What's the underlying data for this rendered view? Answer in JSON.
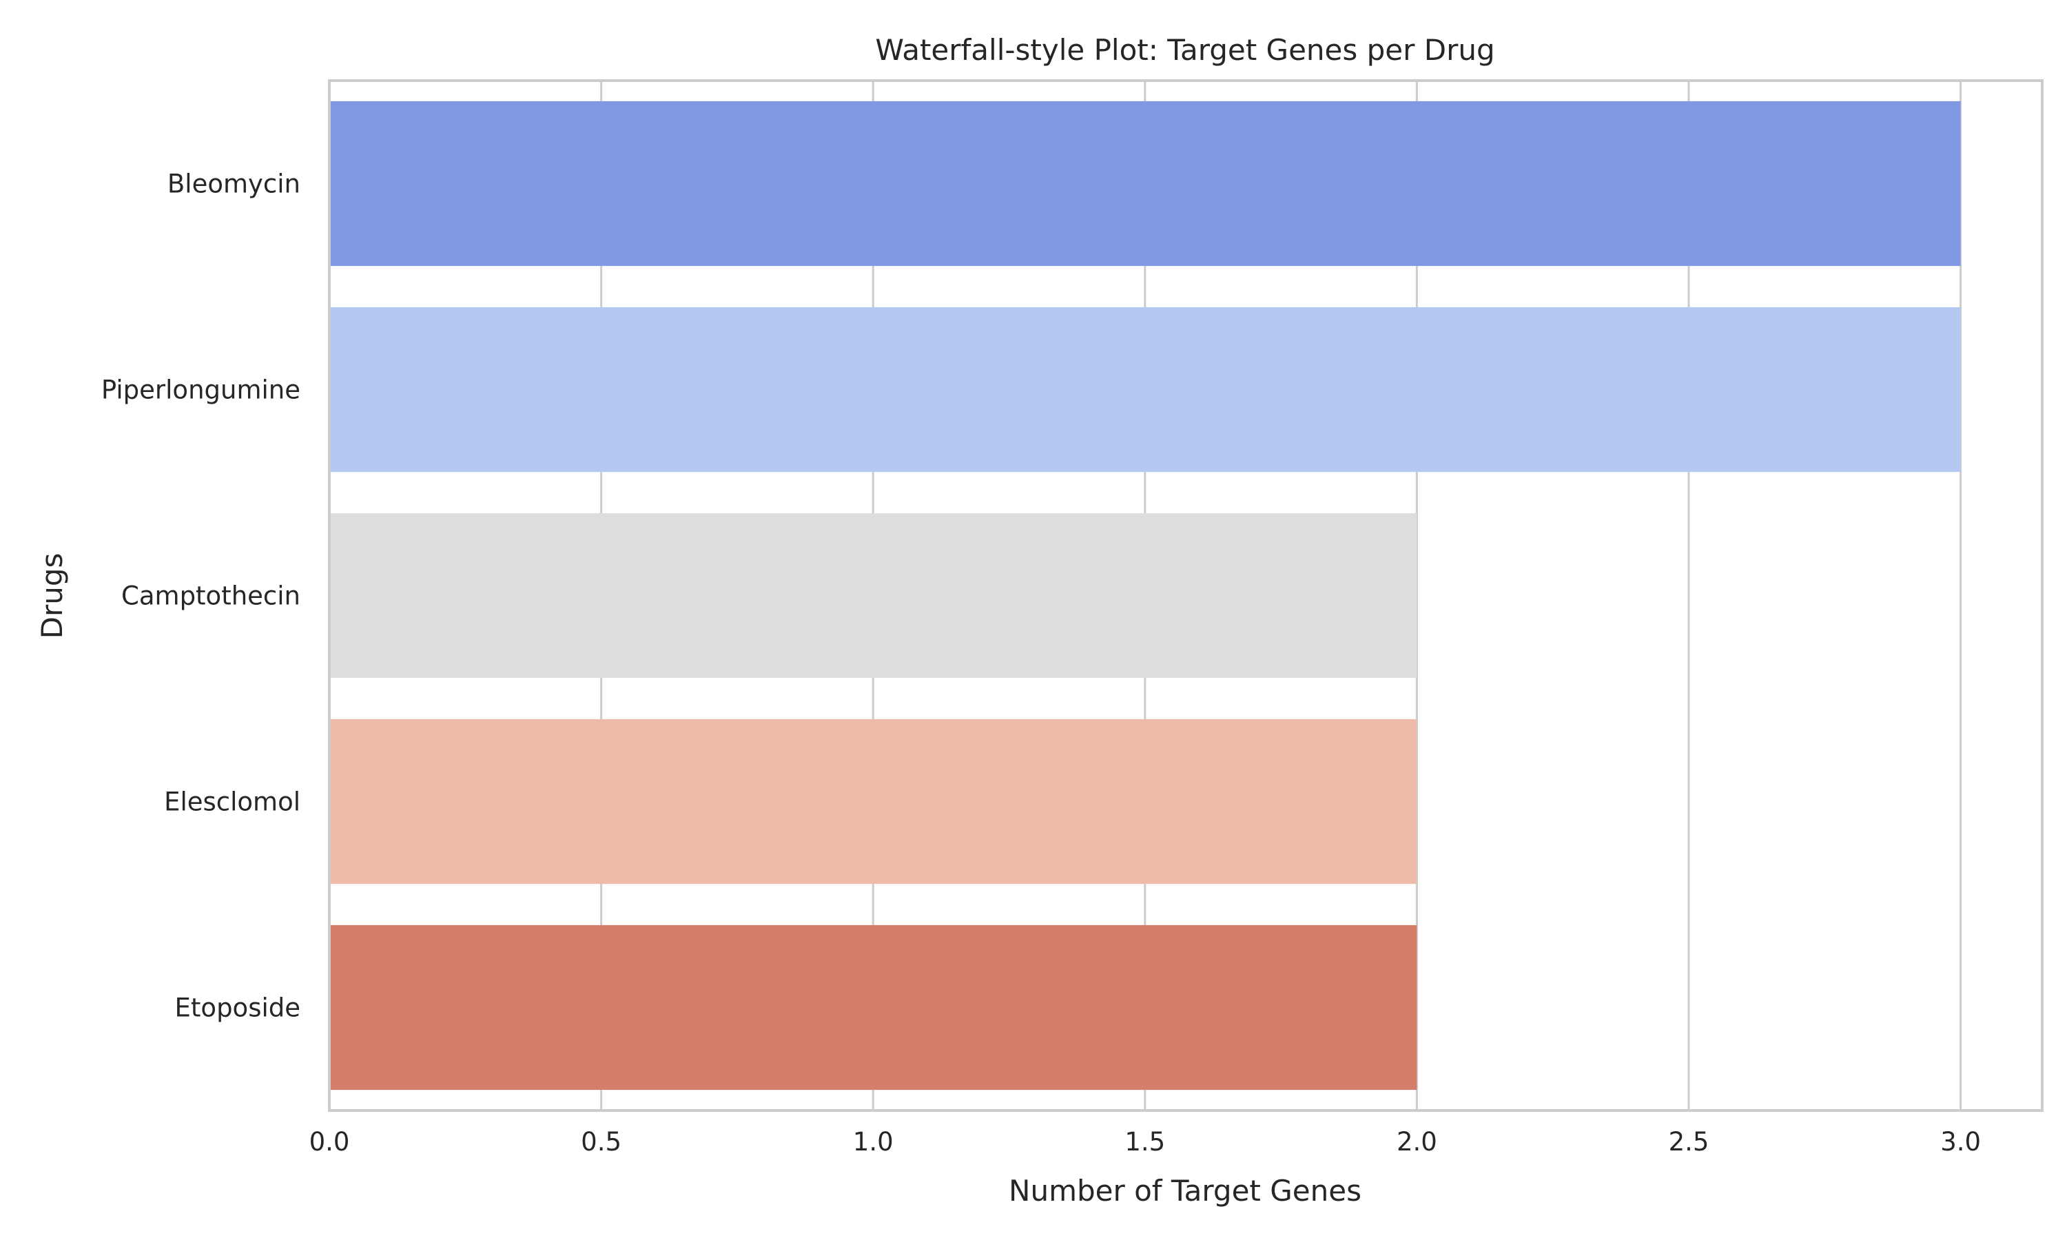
{
  "chart_data": {
    "type": "bar",
    "orientation": "horizontal",
    "title": "Waterfall-style Plot: Target Genes per Drug",
    "xlabel": "Number of Target Genes",
    "ylabel": "Drugs",
    "categories": [
      "Bleomycin",
      "Piperlongumine",
      "Camptothecin",
      "Elesclomol",
      "Etoposide"
    ],
    "values": [
      3,
      3,
      2,
      2,
      2
    ],
    "colors": [
      "#8199e2",
      "#b4c8f3",
      "#dddddd",
      "#ecbca8",
      "#d67e6c"
    ],
    "xlim": [
      0,
      3.15
    ],
    "xticks": [
      0.0,
      0.5,
      1.0,
      1.5,
      2.0,
      2.5,
      3.0
    ],
    "xtick_labels": [
      "0.0",
      "0.5",
      "1.0",
      "1.5",
      "2.0",
      "2.5",
      "3.0"
    ],
    "grid": true,
    "legend": "none"
  }
}
